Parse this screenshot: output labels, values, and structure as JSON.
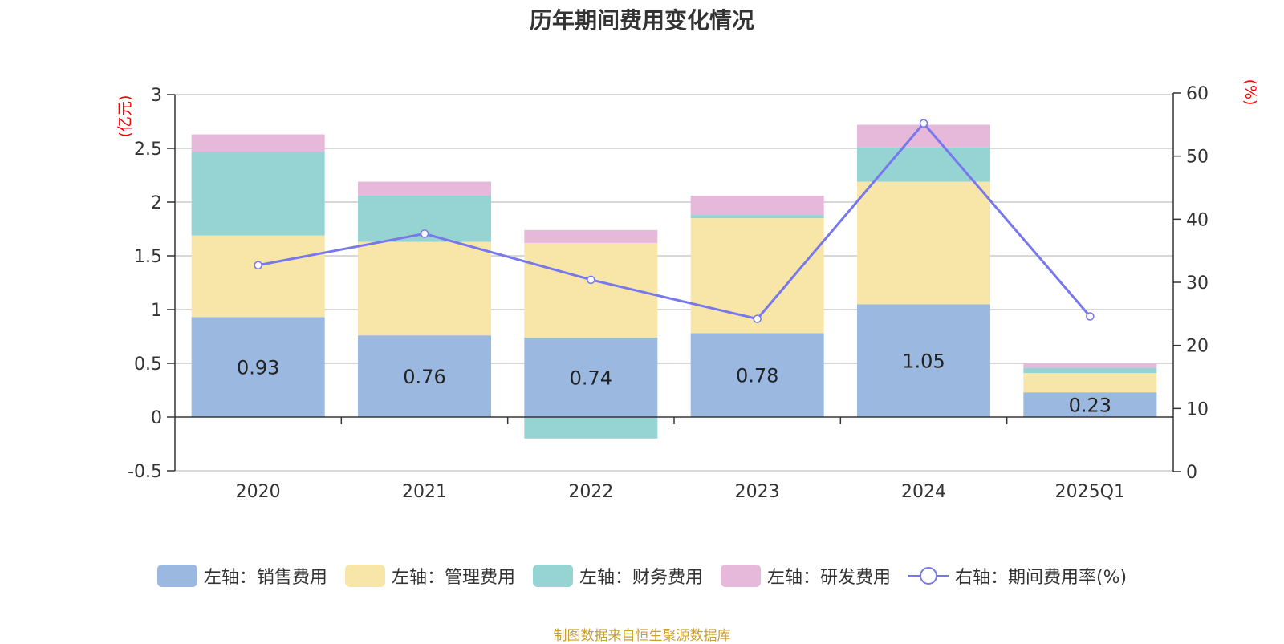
{
  "title": "历年期间费用变化情况",
  "source": "制图数据来自恒生聚源数据库",
  "colors": {
    "sales": "#9ab8e0",
    "admin": "#f7e6a8",
    "finance": "#96d4d4",
    "rd": "#e6b8da",
    "line": "#7777ee",
    "unit_text": "#ff0000",
    "axis_text": "#333333"
  },
  "legend": [
    {
      "label": "左轴：销售费用",
      "type": "box",
      "color": "#9ab8e0"
    },
    {
      "label": "左轴：管理费用",
      "type": "box",
      "color": "#f7e6a8"
    },
    {
      "label": "左轴：财务费用",
      "type": "box",
      "color": "#96d4d4"
    },
    {
      "label": "左轴：研发费用",
      "type": "box",
      "color": "#e6b8da"
    },
    {
      "label": "右轴：期间费用率(%)",
      "type": "line",
      "color": "#7777ee"
    }
  ],
  "chart_data": {
    "type": "bar",
    "stacked": true,
    "categories": [
      "2020",
      "2021",
      "2022",
      "2023",
      "2024",
      "2025Q1"
    ],
    "series": [
      {
        "name": "左轴：销售费用",
        "axis": "left",
        "values": [
          0.93,
          0.76,
          0.74,
          0.78,
          1.05,
          0.23
        ],
        "labels": [
          "0.93",
          "0.76",
          "0.74",
          "0.78",
          "1.05",
          "0.23"
        ]
      },
      {
        "name": "左轴：管理费用",
        "axis": "left",
        "values": [
          0.76,
          0.87,
          0.88,
          1.07,
          1.14,
          0.18
        ]
      },
      {
        "name": "左轴：财务费用",
        "axis": "left",
        "values": [
          0.78,
          0.43,
          -0.2,
          0.03,
          0.32,
          0.05
        ]
      },
      {
        "name": "左轴：研发费用",
        "axis": "left",
        "values": [
          0.16,
          0.13,
          0.12,
          0.18,
          0.21,
          0.04
        ]
      },
      {
        "name": "右轴：期间费用率(%)",
        "axis": "right",
        "type": "line",
        "values": [
          32.7,
          37.7,
          30.4,
          24.2,
          55.2,
          24.6
        ]
      }
    ],
    "left_axis": {
      "unit": "(亿元)",
      "range": [
        -0.5,
        3
      ],
      "ticks": [
        "-0.5",
        "0",
        "0.5",
        "1",
        "1.5",
        "2",
        "2.5",
        "3"
      ],
      "tick_values": [
        -0.5,
        0,
        0.5,
        1,
        1.5,
        2,
        2.5,
        3
      ]
    },
    "right_axis": {
      "unit": "(%)",
      "range": [
        0,
        60
      ],
      "ticks": [
        "0",
        "10",
        "20",
        "30",
        "40",
        "50",
        "60"
      ],
      "tick_values": [
        0,
        10,
        20,
        30,
        40,
        50,
        60
      ]
    },
    "grid": true,
    "legend_position": "bottom"
  }
}
